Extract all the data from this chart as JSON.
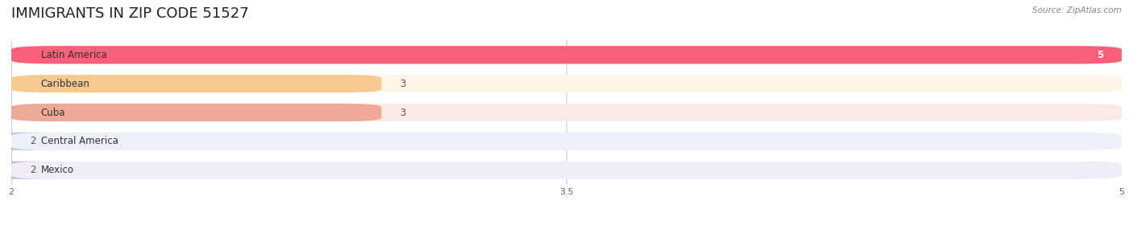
{
  "title": "IMMIGRANTS IN ZIP CODE 51527",
  "source": "Source: ZipAtlas.com",
  "categories": [
    "Latin America",
    "Caribbean",
    "Cuba",
    "Central America",
    "Mexico"
  ],
  "values": [
    5,
    3,
    3,
    2,
    2
  ],
  "bar_colors": [
    "#F9607A",
    "#F5C990",
    "#F0A898",
    "#B8C8E8",
    "#C8B8DC"
  ],
  "bar_bg_colors": [
    "#FDE8EC",
    "#FDF5E8",
    "#FAEAE6",
    "#EEF1F8",
    "#F0ECF8"
  ],
  "xlim_min": 2,
  "xlim_max": 5,
  "xticks": [
    2,
    3.5,
    5
  ],
  "title_fontsize": 13,
  "label_fontsize": 8.5,
  "value_fontsize": 8.5,
  "bar_height": 0.62,
  "background_color": "#ffffff"
}
